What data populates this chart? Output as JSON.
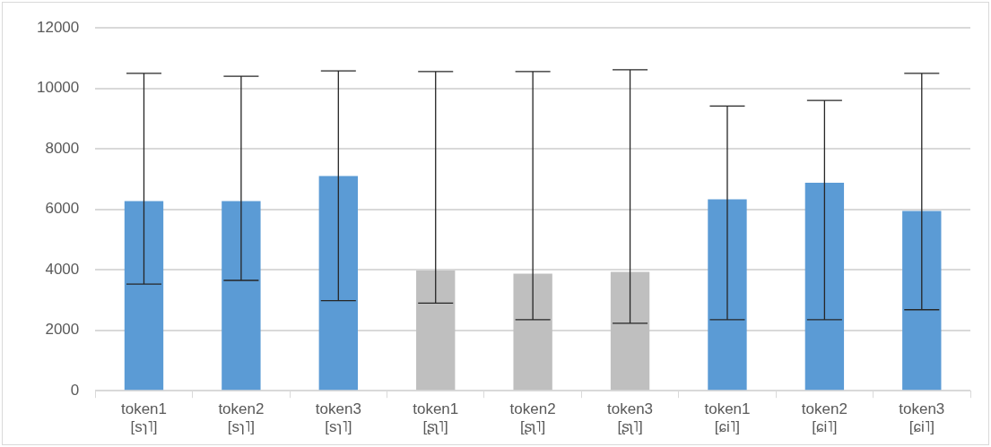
{
  "chart_data": {
    "type": "bar",
    "categories": [
      "token1\n[sɿ˥]",
      "token2\n[sɿ˥]",
      "token3\n[sɿ˥]",
      "token1\n[ʂʅ˥]",
      "token2\n[ʂʅ˥]",
      "token3\n[ʂʅ˥]",
      "token1\n[ɕi˥]",
      "token2\n[ɕi˥]",
      "token3\n[ɕi˥]"
    ],
    "values": [
      6270,
      6270,
      7100,
      3980,
      3870,
      3930,
      6330,
      6880,
      5950
    ],
    "colors": [
      "#5b9bd5",
      "#5b9bd5",
      "#5b9bd5",
      "#bfbfbf",
      "#bfbfbf",
      "#bfbfbf",
      "#5b9bd5",
      "#5b9bd5",
      "#5b9bd5"
    ],
    "errors": [
      [
        3530,
        10500
      ],
      [
        3650,
        10400
      ],
      [
        2980,
        10580
      ],
      [
        2900,
        10560
      ],
      [
        2350,
        10560
      ],
      [
        2230,
        10620
      ],
      [
        2350,
        9420
      ],
      [
        2350,
        9600
      ],
      [
        2680,
        10500
      ]
    ],
    "ylim": [
      0,
      12000
    ],
    "yticks": [
      0,
      2000,
      4000,
      6000,
      8000,
      10000,
      12000
    ],
    "grid": "y"
  }
}
